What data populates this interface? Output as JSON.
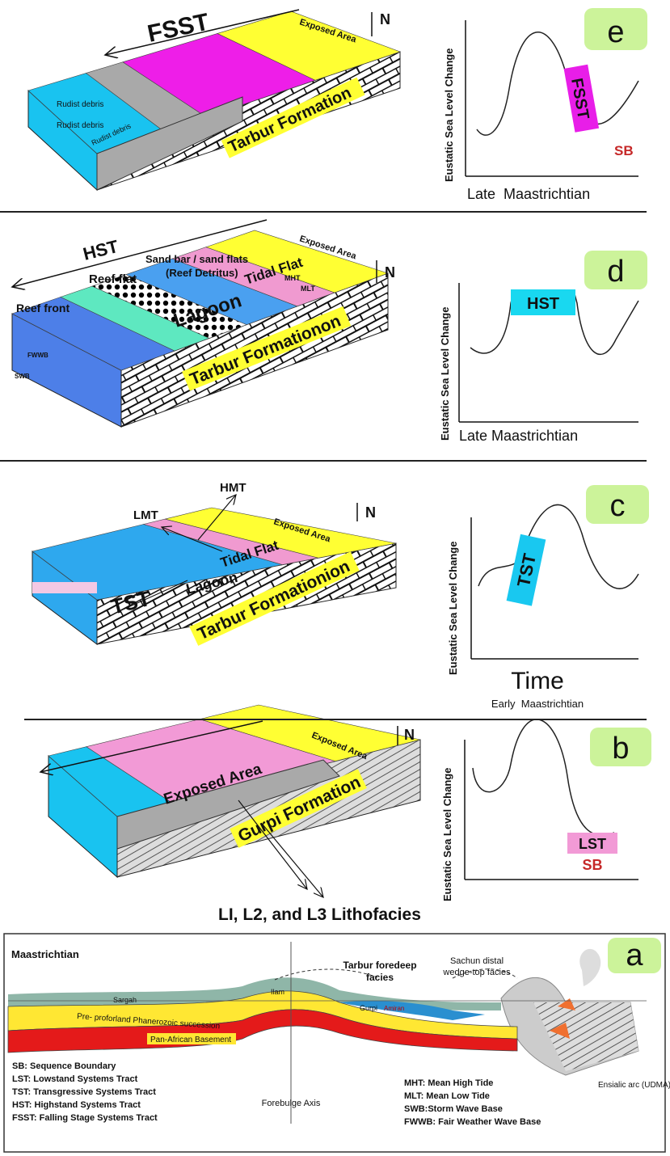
{
  "panels": {
    "e": {
      "letter": "e",
      "tract": "FSST",
      "exposed": "Exposed Area",
      "debris": [
        "Rudist debris",
        "Rudist debris",
        "Rudist debris"
      ],
      "formation": "Tarbur Formation",
      "north": "N",
      "curve": {
        "y_label": "Eustatic Sea Level Change",
        "x_label": "Late  Maastrichtian",
        "tag": "FSST",
        "boundary": "SB"
      }
    },
    "d": {
      "letter": "d",
      "tract": "HST",
      "sand_bar": "Sand bar / sand flats",
      "detritus": "(Reef Detritus)",
      "reef_flat": "Reef flat",
      "reef_front": "Reef front",
      "lagoon": "Lagoon",
      "tidal": "Tidal Flat",
      "exposed": "Exposed Area",
      "mht": "MHT",
      "mlt": "MLT",
      "fwwb": "FWWB",
      "swb": "SWB",
      "formation": "Tarbur Formationon",
      "north": "N",
      "curve": {
        "y_label": "Eustatic Sea Level Change",
        "x_label": "Late Maastrichtian",
        "tag": "HST"
      }
    },
    "c": {
      "letter": "c",
      "hmt": "HMT",
      "lmt": "LMT",
      "north": "N",
      "exposed": "Exposed Area",
      "tidal": "Tidal Flat",
      "tract": "TST",
      "lagoon": "Lagoon",
      "formation": "Tarbur Formationion",
      "curve": {
        "y_label": "Eustatic Sea Level Change",
        "x_title": "Time",
        "x_label": "Early  Maastrichtian",
        "tag": "TST"
      }
    },
    "b": {
      "letter": "b",
      "north": "N",
      "exposed_small": "Exposed Area",
      "exposed": "Exposed Area",
      "formation": "Gurpi Formation",
      "lithofacies": "LI, L2, and L3 Lithofacies",
      "curve": {
        "y_label": "Eustatic Sea Level Change",
        "tag": "LST",
        "boundary": "SB"
      }
    },
    "a": {
      "letter": "a",
      "age": "Maastrichtian",
      "foredeep": [
        "Tarbur foredeep",
        "facies"
      ],
      "sachun": [
        "Sachun distal",
        "wedge-top facies"
      ],
      "sargah": "Sargah",
      "ilam": "Ilam",
      "succession": "Pre- proforland Phanerozoic succession",
      "basement": "Pan-African Basement",
      "gurpi": "Gurpi",
      "amiran": "Amiran",
      "forebulge": "Forebulge Axis",
      "arc": "Ensialic arc (UDMA)",
      "legend_left": [
        "SB: Sequence Boundary",
        "LST: Lowstand Systems Tract",
        "TST: Transgressive Systems Tract",
        "HST: Highstand Systems Tract",
        "FSST: Falling Stage Systems Tract"
      ],
      "legend_right": [
        "MHT: Mean High Tide",
        "MLT: Mean Low Tide",
        "SWB:Storm Wave Base",
        "FWWB: Fair Weather Wave Base"
      ]
    }
  }
}
